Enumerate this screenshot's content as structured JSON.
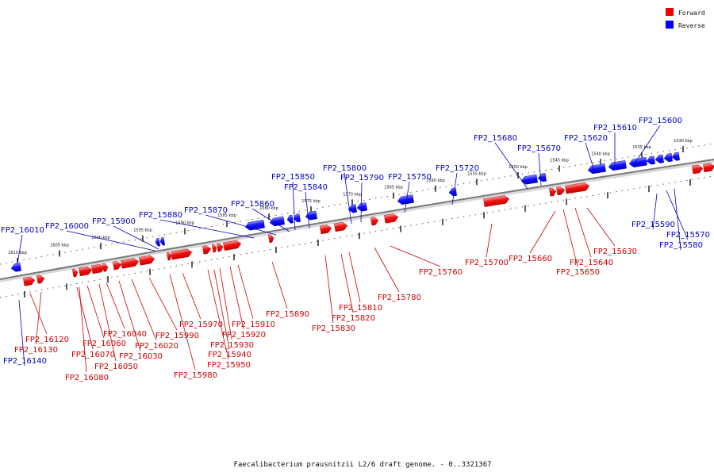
{
  "caption": "Faecalibacterium prausnitzii L2/6 draft genome. - 0..3321367",
  "legend": [
    {
      "label": "Forward",
      "color": "#ee0000"
    },
    {
      "label": "Reverse",
      "color": "#0000ff"
    }
  ],
  "scale_labels": [
    "1610 kbp",
    "1605 kbp",
    "1600 kbp",
    "1595 kbp",
    "1590 kbp",
    "1585 kbp",
    "1580 kbp",
    "1575 kbp",
    "1570 kbp",
    "1565 kbp",
    "1560 kbp",
    "1555 kbp",
    "1550 kbp",
    "1545 kbp",
    "1540 kbp",
    "1535 kbp",
    "1530 kbp"
  ],
  "genes_forward": [
    "FP2_16120",
    "FP2_16130",
    "FP2_16070",
    "FP2_16080",
    "FP2_16060",
    "FP2_16050",
    "FP2_16040",
    "FP2_16030",
    "FP2_16020",
    "FP2_15990",
    "FP2_15980",
    "FP2_15970",
    "FP2_15950",
    "FP2_15940",
    "FP2_15930",
    "FP2_15920",
    "FP2_15910",
    "FP2_15890",
    "FP2_15830",
    "FP2_15820",
    "FP2_15810",
    "FP2_15780",
    "FP2_15760",
    "FP2_15700",
    "FP2_15660",
    "FP2_15650",
    "FP2_15640",
    "FP2_15630"
  ],
  "genes_reverse": [
    "FP2_16010",
    "FP2_16000",
    "FP2_15900",
    "FP2_15880",
    "FP2_15870",
    "FP2_15860",
    "FP2_15850",
    "FP2_15840",
    "FP2_15800",
    "FP2_15790",
    "FP2_15750",
    "FP2_15720",
    "FP2_15680",
    "FP2_15670",
    "FP2_15620",
    "FP2_15610",
    "FP2_15600",
    "FP2_15590",
    "FP2_15570",
    "FP2_15580",
    "FP2_16140"
  ]
}
